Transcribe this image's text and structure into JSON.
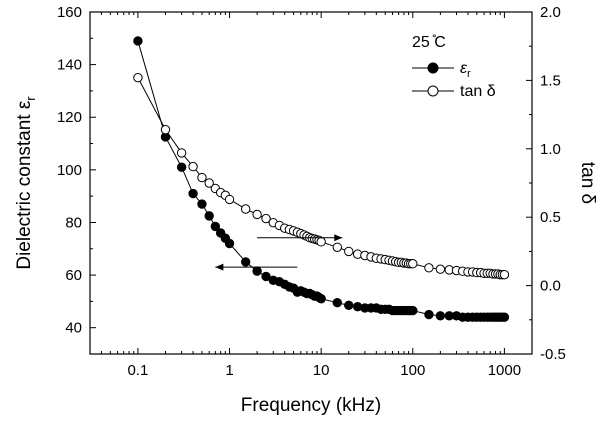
{
  "chart_data": {
    "type": "scatter",
    "xscale": "log",
    "xlabel": "Frequency (kHz)",
    "ylabel_left": "Dielectric constant ε",
    "ylabel_left_sub": "r",
    "ylabel_right": "tan δ",
    "xlim": [
      0.03,
      2000
    ],
    "ylim_left": [
      30,
      160
    ],
    "ylim_right": [
      -0.5,
      2.0
    ],
    "x_ticks": [
      {
        "value": 0.1,
        "label": "0.1"
      },
      {
        "value": 1,
        "label": "1"
      },
      {
        "value": 10,
        "label": "10"
      },
      {
        "value": 100,
        "label": "100"
      },
      {
        "value": 1000,
        "label": "1000"
      }
    ],
    "y_left_ticks": [
      {
        "value": 40,
        "label": "40"
      },
      {
        "value": 60,
        "label": "60"
      },
      {
        "value": 80,
        "label": "80"
      },
      {
        "value": 100,
        "label": "100"
      },
      {
        "value": 120,
        "label": "120"
      },
      {
        "value": 140,
        "label": "140"
      },
      {
        "value": 160,
        "label": "160"
      }
    ],
    "y_right_ticks": [
      {
        "value": -0.5,
        "label": "-0.5"
      },
      {
        "value": 0.0,
        "label": "0.0"
      },
      {
        "value": 0.5,
        "label": "0.5"
      },
      {
        "value": 1.0,
        "label": "1.0"
      },
      {
        "value": 1.5,
        "label": "1.5"
      },
      {
        "value": 2.0,
        "label": "2.0"
      }
    ],
    "legend": {
      "title": "25 ̊C",
      "placement": "top-right",
      "entries": [
        {
          "label": "ε",
          "sub": "r",
          "marker": "filled-circle"
        },
        {
          "label": "tan δ",
          "marker": "open-circle"
        }
      ]
    },
    "series": [
      {
        "name": "εr",
        "axis": "left",
        "marker": "filled",
        "x": [
          0.1,
          0.2,
          0.3,
          0.4,
          0.5,
          0.6,
          0.7,
          0.8,
          0.9,
          1,
          1.5,
          2,
          2.5,
          3,
          3.5,
          4,
          4.5,
          5,
          5.5,
          6,
          6.5,
          7,
          7.5,
          8,
          8.5,
          9,
          9.5,
          10,
          15,
          20,
          25,
          30,
          35,
          40,
          45,
          50,
          55,
          60,
          65,
          70,
          75,
          80,
          85,
          90,
          95,
          100,
          150,
          200,
          250,
          300,
          350,
          400,
          450,
          500,
          550,
          600,
          650,
          700,
          750,
          800,
          850,
          900,
          950,
          1000
        ],
        "y": [
          149,
          112.5,
          101,
          91,
          87,
          82.5,
          78.5,
          76,
          74,
          72,
          65,
          61.5,
          59.5,
          58,
          57.5,
          56.5,
          55.5,
          55,
          53.5,
          54,
          53.5,
          53,
          53,
          52.5,
          52,
          52,
          51.5,
          51,
          49.5,
          48.5,
          48,
          47.5,
          47.5,
          47.5,
          47,
          47,
          47,
          46.5,
          46.5,
          46.5,
          46.5,
          46.5,
          46.5,
          46.5,
          46.5,
          46.5,
          45,
          44.5,
          44.5,
          44.5,
          44,
          44,
          44,
          44,
          44,
          44,
          44,
          44,
          44,
          44,
          44,
          44,
          44,
          44
        ]
      },
      {
        "name": "tan δ",
        "axis": "right",
        "marker": "open",
        "x": [
          0.1,
          0.2,
          0.3,
          0.4,
          0.5,
          0.6,
          0.7,
          0.8,
          0.9,
          1,
          1.5,
          2,
          2.5,
          3,
          3.5,
          4,
          4.5,
          5,
          5.5,
          6,
          6.5,
          7,
          7.5,
          8,
          8.5,
          9,
          9.5,
          10,
          15,
          20,
          25,
          30,
          35,
          40,
          45,
          50,
          55,
          60,
          65,
          70,
          75,
          80,
          85,
          90,
          95,
          100,
          150,
          200,
          250,
          300,
          350,
          400,
          450,
          500,
          550,
          600,
          650,
          700,
          750,
          800,
          850,
          900,
          950,
          1000
        ],
        "y": [
          1.52,
          1.14,
          0.97,
          0.87,
          0.79,
          0.75,
          0.71,
          0.68,
          0.66,
          0.63,
          0.56,
          0.52,
          0.49,
          0.46,
          0.44,
          0.42,
          0.41,
          0.4,
          0.39,
          0.38,
          0.37,
          0.36,
          0.35,
          0.345,
          0.34,
          0.335,
          0.33,
          0.32,
          0.28,
          0.25,
          0.23,
          0.22,
          0.21,
          0.2,
          0.195,
          0.19,
          0.185,
          0.18,
          0.175,
          0.17,
          0.17,
          0.165,
          0.165,
          0.16,
          0.16,
          0.16,
          0.13,
          0.12,
          0.115,
          0.11,
          0.105,
          0.1,
          0.1,
          0.095,
          0.095,
          0.09,
          0.09,
          0.09,
          0.085,
          0.085,
          0.085,
          0.08,
          0.08,
          0.08
        ]
      }
    ],
    "arrows": [
      {
        "points_to": "right",
        "x_from": 2,
        "x_to": 17,
        "axis": "right",
        "y": 0.35
      },
      {
        "points_to": "left",
        "x_from": 5.5,
        "x_to": 0.7,
        "axis": "left",
        "y": 63
      }
    ]
  }
}
